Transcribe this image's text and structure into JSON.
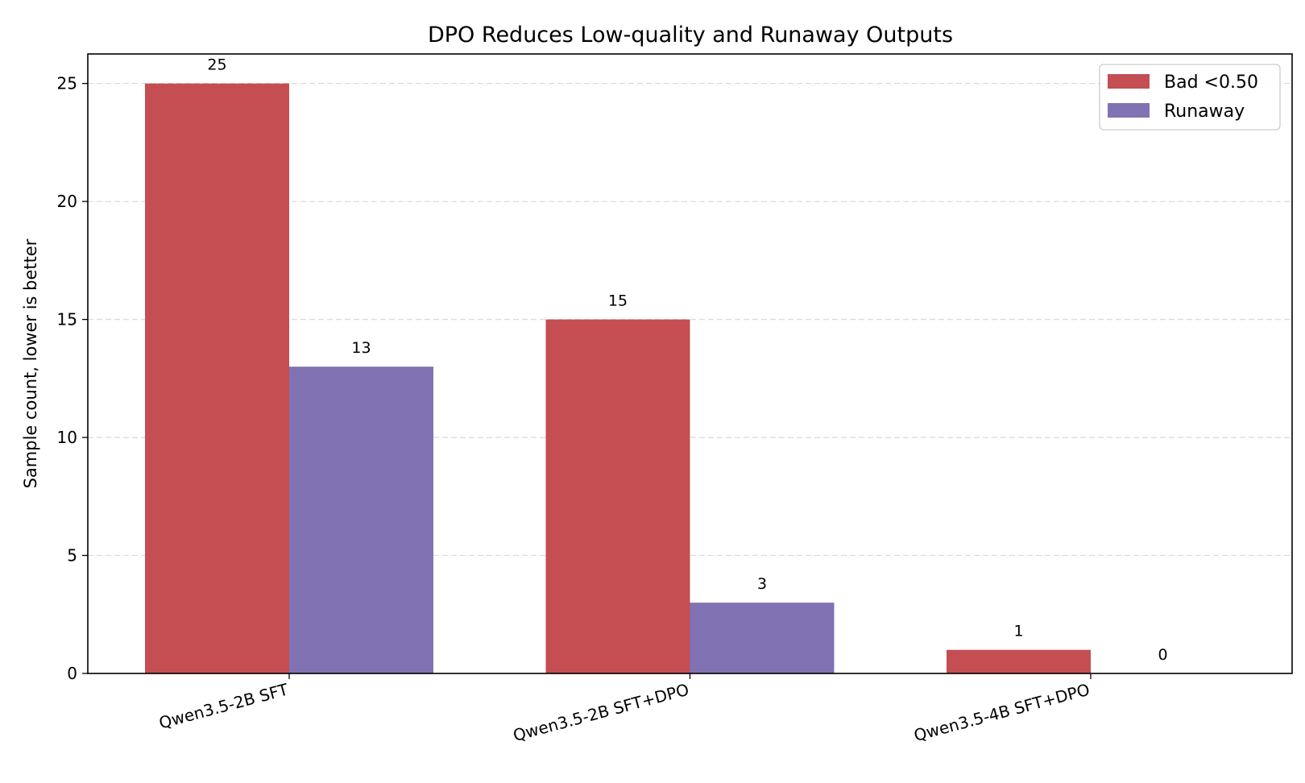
{
  "chart_data": {
    "type": "bar",
    "title": "DPO Reduces Low-quality and Runaway Outputs",
    "xlabel": "",
    "ylabel": "Sample count, lower is better",
    "categories": [
      "Qwen3.5-2B SFT",
      "Qwen3.5-2B SFT+DPO",
      "Qwen3.5-4B SFT+DPO"
    ],
    "series": [
      {
        "name": "Bad <0.50",
        "values": [
          25,
          15,
          1
        ],
        "color": "#c44e52"
      },
      {
        "name": "Runaway",
        "values": [
          13,
          3,
          0
        ],
        "color": "#8172b3"
      }
    ],
    "ylim": [
      0,
      26.25
    ],
    "yticks": [
      0,
      5,
      10,
      15,
      20,
      25
    ],
    "grid": "y-dashed",
    "legend": "top-right"
  }
}
